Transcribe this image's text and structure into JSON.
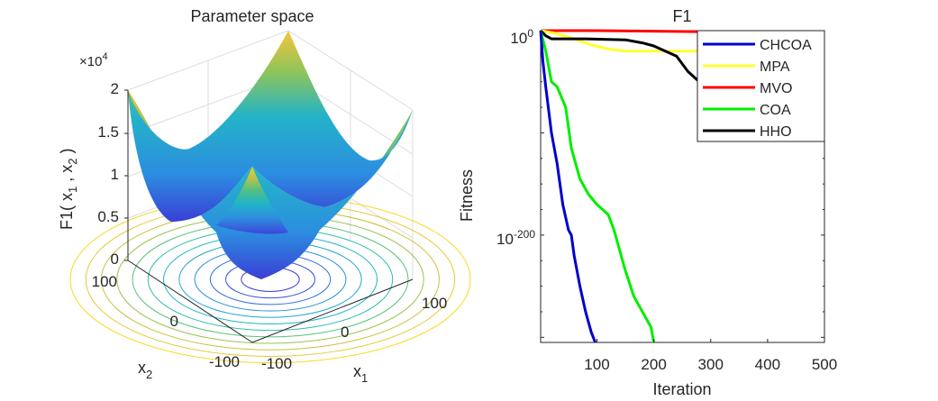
{
  "chart_data": [
    {
      "type": "surface3d",
      "title": "Parameter space",
      "function": "F1 = x1^2 + x2^2 (sphere)",
      "xlabel": "x_1",
      "ylabel": "x_2",
      "zlabel": "F1( x_1 , x_2 )",
      "z_exponent_label": "×10^4",
      "x_range": [
        -100,
        100
      ],
      "y_range": [
        -100,
        100
      ],
      "z_range": [
        0,
        20000
      ],
      "x_ticks": [
        "-100",
        "0",
        "100"
      ],
      "y_ticks": [
        "-100",
        "0",
        "100"
      ],
      "z_ticks": [
        "0",
        "0.5",
        "1",
        "1.5",
        "2"
      ],
      "contour_on_floor": true,
      "colormap": "parula"
    },
    {
      "type": "line",
      "title": "F1",
      "xlabel": "Iteration",
      "ylabel": "Fitness",
      "xscale": "linear",
      "yscale": "log",
      "xlim": [
        1,
        500
      ],
      "ylim_log10": [
        -305,
        5
      ],
      "x_ticks": [
        "100",
        "200",
        "300",
        "400",
        "500"
      ],
      "y_ticks": [
        {
          "base": "10",
          "exp": "0",
          "log10": 0
        },
        {
          "base": "10",
          "exp": "-200",
          "log10": -200
        }
      ],
      "legend_position": "top-right",
      "series": [
        {
          "name": "CHCOA",
          "color": "#0000cc",
          "x": [
            1,
            5,
            10,
            20,
            30,
            40,
            50,
            55,
            60,
            70,
            80,
            90,
            97
          ],
          "log10": [
            0,
            -30,
            -55,
            -100,
            -130,
            -170,
            -195,
            -200,
            -220,
            -250,
            -275,
            -295,
            -305
          ]
        },
        {
          "name": "MPA",
          "color": "#ffff33",
          "x": [
            1,
            30,
            60,
            90,
            120,
            150,
            200,
            250,
            280
          ],
          "log10": [
            0,
            -3,
            -8,
            -14,
            -18,
            -20,
            -20,
            -20,
            -20
          ]
        },
        {
          "name": "MVO",
          "color": "#ff0000",
          "x": [
            1,
            100,
            200,
            280
          ],
          "log10": [
            0,
            0,
            -0.5,
            -1
          ]
        },
        {
          "name": "COA",
          "color": "#00ee00",
          "x": [
            1,
            10,
            20,
            30,
            45,
            55,
            70,
            85,
            100,
            120,
            130,
            150,
            165,
            180,
            195,
            200
          ],
          "log10": [
            0,
            -20,
            -50,
            -55,
            -75,
            -115,
            -145,
            -160,
            -170,
            -180,
            -195,
            -235,
            -260,
            -275,
            -290,
            -305
          ]
        },
        {
          "name": "HHO",
          "color": "#000000",
          "x": [
            1,
            10,
            20,
            80,
            150,
            180,
            200,
            240,
            260,
            300,
            330,
            360,
            400,
            450,
            500
          ],
          "log10": [
            0,
            -5,
            -8,
            -8,
            -9,
            -12,
            -15,
            -25,
            -40,
            -60,
            -90,
            -103,
            -104,
            -104,
            -104
          ]
        }
      ]
    }
  ]
}
